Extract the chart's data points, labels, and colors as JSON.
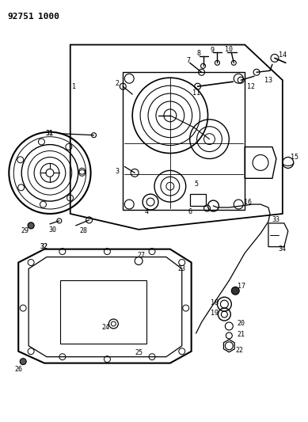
{
  "title_part1": "92751",
  "title_part2": "1000",
  "bg": "#ffffff",
  "fw": 3.89,
  "fh": 5.33,
  "dpi": 100
}
